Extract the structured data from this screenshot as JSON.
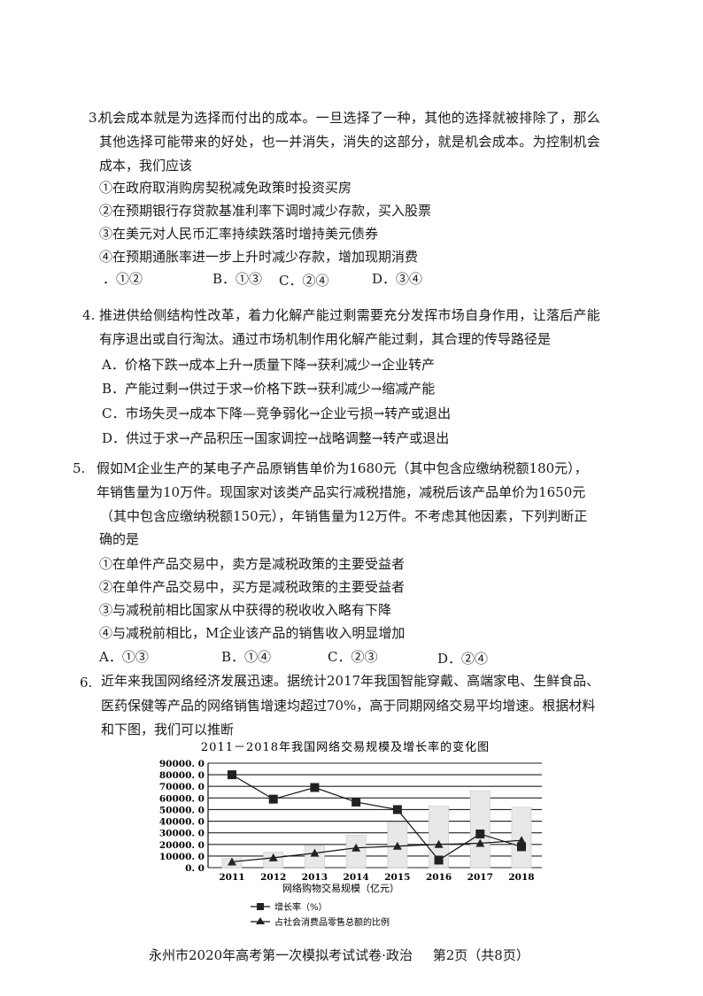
{
  "questions": [
    {
      "number": "3.",
      "stem": [
        "机会成本就是为选择而付出的成本。一旦选择了一种，其他的选择就被排除了，那么",
        "其他选择可能带来的好处，也一并消失，消失的这部分，就是机会成本。为控制机会",
        "成本，我们应该"
      ],
      "statements": [
        "①在政府取消购房契税减免政策时投资买房",
        "②在预期银行存贷款基准利率下调时减少存款，买入股票",
        "③在美元对人民币汇率持续跌落时增持美元债券",
        "④在预期通胀率进一步上升时减少存款，增加现期消费"
      ],
      "options": [
        "．①②",
        "B．①③",
        "C．②④",
        "D．③④"
      ]
    },
    {
      "number": "4.",
      "stem": [
        "推进供给侧结构性改革，着力化解产能过剩需要充分发挥市场自身作用，让落后产能",
        "有序退出或自行淘汰。通过市场机制作用化解产能过剩，其合理的传导路径是"
      ],
      "options": [
        "A．价格下跌→成本上升→质量下降→获利减少→企业转产",
        "B．产能过剩→供过于求→价格下跌→获利减少→缩减产能",
        "C．市场失灵→成本下降—竞争弱化→企业亏损→转产或退出",
        "D．供过于求→产品积压→国家调控→战略调整→转产或退出"
      ]
    },
    {
      "number": "5.",
      "stem": [
        "假如M企业生产的某电子产品原销售单价为1680元（其中包含应缴纳税额180元），",
        "年销售量为10万件。现国家对该类产品实行减税措施，减税后该产品单价为1650元",
        "（其中包含应缴纳税额150元），年销售量为12万件。不考虑其他因素，下列判断正",
        "确的是"
      ],
      "statements": [
        "①在单件产品交易中，卖方是减税政策的主要受益者",
        "②在单件产品交易中，买方是减税政策的主要受益者",
        "③与减税前相比国家从中获得的税收收入略有下降",
        "④与减税前相比，M企业该产品的销售收入明显增加"
      ],
      "options": [
        "A．①③",
        "B．①④",
        "C．②③",
        "D．②④"
      ]
    },
    {
      "number": "6.",
      "stem": [
        "近年来我国网络经济发展迅速。据统计2017年我国智能穿戴、高端家电、生鲜食品、",
        "医药保健等产品的网络销售增速均超过70%，高于同期网络交易平均增速。根据材料",
        "和下图，我们可以推断"
      ]
    }
  ],
  "chart_data": {
    "type": "bar+line",
    "title": "2011－2018年我国网络交易规模及增长率的变化图",
    "xlabel": "网络购物交易规模（亿元）",
    "ylabel": "",
    "categories": [
      "2011",
      "2012",
      "2013",
      "2014",
      "2015",
      "2016",
      "2017",
      "2018"
    ],
    "ylim": [
      0,
      90000
    ],
    "yticks": [
      "0. 0",
      "10000. 0",
      "20000. 0",
      "30000. 0",
      "40000. 0",
      "50000. 0",
      "60000. 0",
      "70000. 0",
      "80000. 0",
      "90000. 0"
    ],
    "grid": true,
    "legend_position": "bottom",
    "bars": {
      "values": [
        7800,
        13200,
        18900,
        27900,
        38800,
        53000,
        66000,
        52000
      ],
      "color": "#e8e8e8"
    },
    "series": [
      {
        "name": "增长率（%）",
        "marker": "square",
        "values": [
          80000,
          59000,
          69000,
          56500,
          50000,
          6500,
          29000,
          18000
        ]
      },
      {
        "name": "占社会消费品零售总额的比例",
        "marker": "triangle",
        "values": [
          5000,
          8500,
          12500,
          17000,
          18500,
          20000,
          21000,
          23500
        ]
      }
    ]
  },
  "footer": {
    "exam": "永州市2020年高考第一次模拟考试试卷·政治",
    "page": "第2页（共8页）"
  }
}
